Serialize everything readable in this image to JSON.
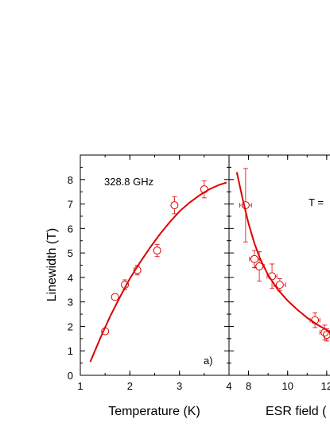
{
  "chart_data": [
    {
      "type": "scatter",
      "panel_label": "a)",
      "annotation": "328.8 GHz",
      "xlabel": "Temperature (K)",
      "ylabel": "Linewidth (T)",
      "xlim": [
        1,
        4
      ],
      "ylim": [
        0,
        9
      ],
      "xticks": [
        "1",
        "2",
        "3",
        "4"
      ],
      "yticks": [
        "0",
        "1",
        "2",
        "3",
        "4",
        "5",
        "6",
        "7",
        "8"
      ],
      "color": "#dd0000",
      "series": [
        {
          "points": [
            {
              "x": 1.5,
              "y": 1.8,
              "yerr": 0.15
            },
            {
              "x": 1.7,
              "y": 3.2,
              "yerr": 0.12
            },
            {
              "x": 1.9,
              "y": 3.7,
              "yerr": 0.2
            },
            {
              "x": 2.15,
              "y": 4.3,
              "yerr": 0.2
            },
            {
              "x": 2.55,
              "y": 5.1,
              "yerr": 0.25
            },
            {
              "x": 2.9,
              "y": 6.95,
              "yerr": 0.35
            },
            {
              "x": 3.5,
              "y": 7.6,
              "yerr": 0.35
            }
          ],
          "fit": [
            [
              1.2,
              0.55
            ],
            [
              1.4,
              1.5
            ],
            [
              1.6,
              2.4
            ],
            [
              1.8,
              3.2
            ],
            [
              2.0,
              3.95
            ],
            [
              2.2,
              4.6
            ],
            [
              2.4,
              5.2
            ],
            [
              2.6,
              5.75
            ],
            [
              2.8,
              6.25
            ],
            [
              3.0,
              6.7
            ],
            [
              3.2,
              7.05
            ],
            [
              3.4,
              7.35
            ],
            [
              3.6,
              7.6
            ],
            [
              3.8,
              7.78
            ],
            [
              3.95,
              7.88
            ]
          ]
        }
      ]
    },
    {
      "type": "scatter",
      "annotation": "T =",
      "xlabel": "ESR field (",
      "xlim": [
        7,
        14
      ],
      "ylim": [
        0,
        9
      ],
      "xticks": [
        "8",
        "10",
        "12"
      ],
      "color": "#dd0000",
      "series": [
        {
          "points": [
            {
              "x": 7.85,
              "y": 6.95,
              "yerr": 1.5,
              "xerr": 0.3
            },
            {
              "x": 8.3,
              "y": 4.75,
              "yerr": 0.35,
              "xerr": 0.25
            },
            {
              "x": 8.55,
              "y": 4.45,
              "yerr": 0.6,
              "xerr": 0.25
            },
            {
              "x": 9.2,
              "y": 4.05,
              "yerr": 0.5,
              "xerr": 0.25
            },
            {
              "x": 9.6,
              "y": 3.7,
              "yerr": 0.25,
              "xerr": 0.3
            },
            {
              "x": 11.4,
              "y": 2.25,
              "yerr": 0.3,
              "xerr": 0.25
            },
            {
              "x": 11.9,
              "y": 1.75,
              "yerr": 0.3,
              "xerr": 0.25
            },
            {
              "x": 12.0,
              "y": 1.65,
              "yerr": 0.25,
              "xerr": 0.2
            },
            {
              "x": 12.6,
              "y": 1.6,
              "yerr": 0.2,
              "xerr": 0.25
            }
          ],
          "fit": [
            [
              7.4,
              8.3
            ],
            [
              7.7,
              7.2
            ],
            [
              8.0,
              6.2
            ],
            [
              8.3,
              5.4
            ],
            [
              8.6,
              4.75
            ],
            [
              9.0,
              4.1
            ],
            [
              9.5,
              3.5
            ],
            [
              10.0,
              3.05
            ],
            [
              10.5,
              2.68
            ],
            [
              11.0,
              2.35
            ],
            [
              11.5,
              2.08
            ],
            [
              12.0,
              1.85
            ],
            [
              12.5,
              1.66
            ],
            [
              13.0,
              1.5
            ],
            [
              13.5,
              1.37
            ],
            [
              14.0,
              1.26
            ]
          ]
        }
      ]
    }
  ]
}
